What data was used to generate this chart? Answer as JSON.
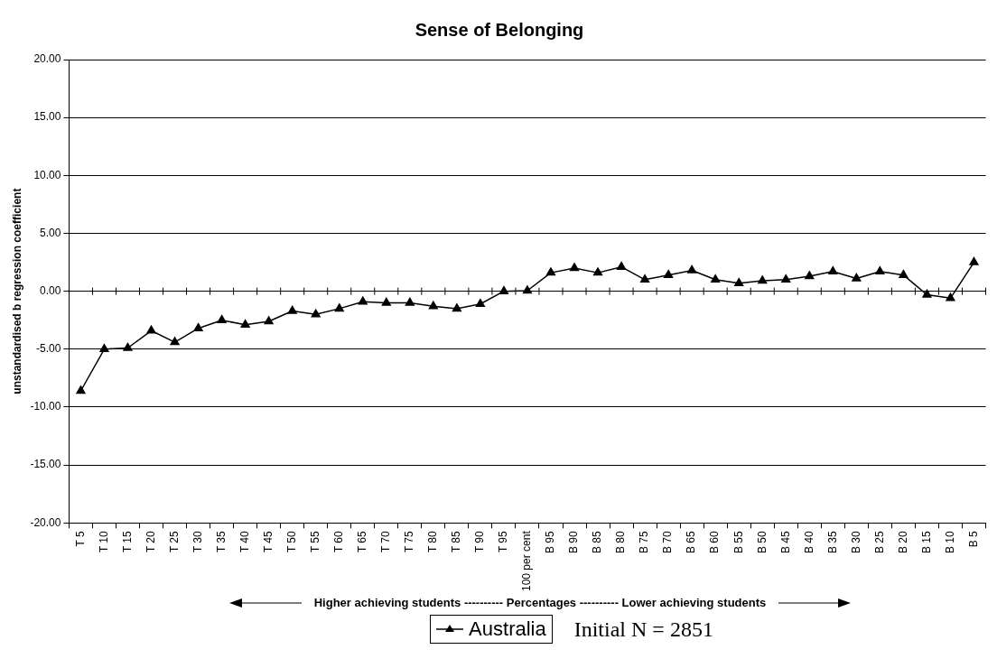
{
  "chart_data": {
    "type": "line",
    "title": "Sense of Belonging",
    "ylabel": "unstandardised b regression coefficient",
    "xlabel": "Higher achieving students ---------- Percentages ---------- Lower achieving students",
    "categories": [
      "T 5",
      "T 10",
      "T 15",
      "T 20",
      "T 25",
      "T 30",
      "T 35",
      "T 40",
      "T 45",
      "T 50",
      "T 55",
      "T 60",
      "T 65",
      "T 70",
      "T 75",
      "T 80",
      "T 85",
      "T 90",
      "T 95",
      "100 per cent",
      "B 95",
      "B 90",
      "B 85",
      "B 80",
      "B 75",
      "B 70",
      "B 65",
      "B 60",
      "B 55",
      "B 50",
      "B 45",
      "B 40",
      "B 35",
      "B 30",
      "B 25",
      "B 20",
      "B 15",
      "B 10",
      "B 5"
    ],
    "series": [
      {
        "name": "Australia",
        "color": "#000000",
        "values": [
          -8.6,
          -5.0,
          -4.9,
          -3.4,
          -4.4,
          -3.2,
          -2.5,
          -2.9,
          -2.6,
          -1.7,
          -2.0,
          -1.5,
          -0.9,
          -1.0,
          -1.0,
          -1.3,
          -1.5,
          -1.1,
          0.0,
          0.05,
          1.6,
          2.0,
          1.6,
          2.1,
          1.0,
          1.4,
          1.8,
          1.0,
          0.7,
          0.9,
          1.0,
          1.3,
          1.7,
          1.1,
          1.7,
          1.4,
          -0.3,
          -0.6,
          2.5
        ]
      }
    ],
    "ylim": [
      -20,
      20
    ],
    "yticks": [
      {
        "value": -20,
        "label": "-20.00"
      },
      {
        "value": -15,
        "label": "-15.00"
      },
      {
        "value": -10,
        "label": "-10.00"
      },
      {
        "value": -5,
        "label": "-5.00"
      },
      {
        "value": 0,
        "label": "0.00"
      },
      {
        "value": 5,
        "label": "5.00"
      },
      {
        "value": 10,
        "label": "10.00"
      },
      {
        "value": 15,
        "label": "15.00"
      },
      {
        "value": 20,
        "label": "20.00"
      }
    ],
    "grid": "y",
    "legend": "bottom",
    "marker": "triangle",
    "line_style": "solid",
    "annotations": [
      "Initial N = 2851"
    ]
  }
}
